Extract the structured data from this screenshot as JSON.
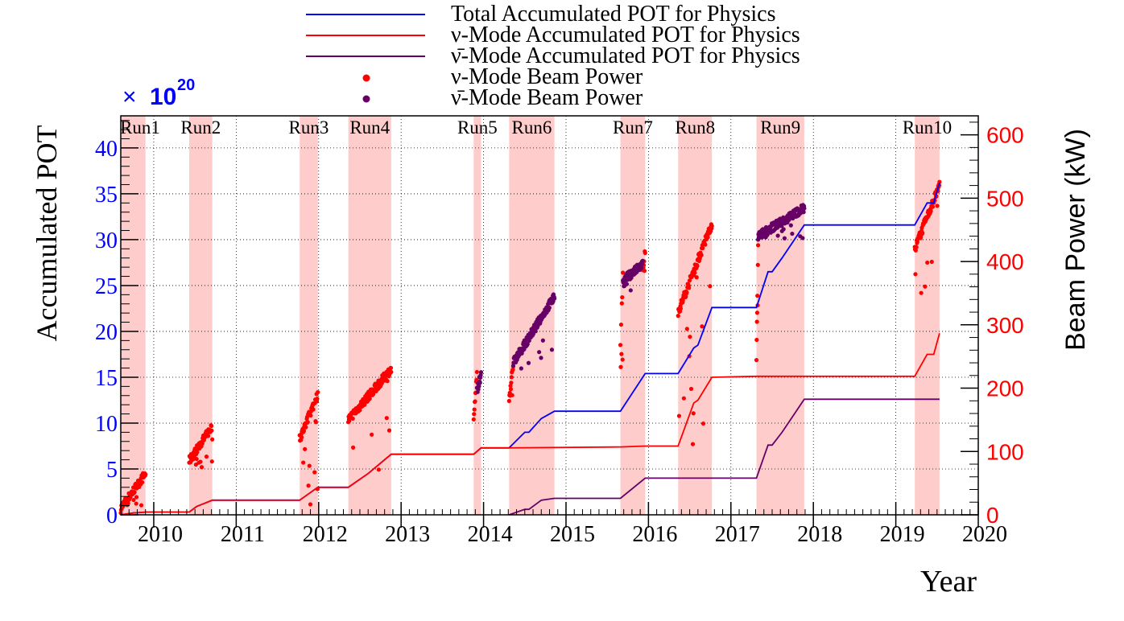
{
  "chart_data": {
    "type": "line",
    "xlabel": "Year",
    "ylabel_left": "Accumulated POT",
    "ylabel_right": "Beam Power (kW)",
    "multiplier_symbol": "×",
    "multiplier_base": "10",
    "multiplier_exponent": "20",
    "xlim": [
      2009.6,
      2020.0
    ],
    "ylim_left": [
      0,
      43.5
    ],
    "ylim_right": [
      0,
      630
    ],
    "grid": true,
    "legend_position": "top-center",
    "x_ticks": [
      {
        "value": 2010,
        "label": "2010"
      },
      {
        "value": 2011,
        "label": "2011"
      },
      {
        "value": 2012,
        "label": "2012"
      },
      {
        "value": 2013,
        "label": "2013"
      },
      {
        "value": 2014,
        "label": "2014"
      },
      {
        "value": 2015,
        "label": "2015"
      },
      {
        "value": 2016,
        "label": "2016"
      },
      {
        "value": 2017,
        "label": "2017"
      },
      {
        "value": 2018,
        "label": "2018"
      },
      {
        "value": 2019,
        "label": "2019"
      },
      {
        "value": 2020,
        "label": "2020"
      }
    ],
    "y_left_ticks": [
      {
        "value": 0,
        "label": "0"
      },
      {
        "value": 5,
        "label": "5"
      },
      {
        "value": 10,
        "label": "10"
      },
      {
        "value": 15,
        "label": "15"
      },
      {
        "value": 20,
        "label": "20"
      },
      {
        "value": 25,
        "label": "25"
      },
      {
        "value": 30,
        "label": "30"
      },
      {
        "value": 35,
        "label": "35"
      },
      {
        "value": 40,
        "label": "40"
      }
    ],
    "y_right_ticks": [
      {
        "value": 0,
        "label": "0"
      },
      {
        "value": 100,
        "label": "100"
      },
      {
        "value": 200,
        "label": "200"
      },
      {
        "value": 300,
        "label": "300"
      },
      {
        "value": 400,
        "label": "400"
      },
      {
        "value": 500,
        "label": "500"
      },
      {
        "value": 600,
        "label": "600"
      }
    ],
    "runs": [
      {
        "label": "Run1",
        "start": 2009.6,
        "end": 2009.9
      },
      {
        "label": "Run2",
        "start": 2010.43,
        "end": 2010.71
      },
      {
        "label": "Run3",
        "start": 2011.77,
        "end": 2011.99
      },
      {
        "label": "Run4",
        "start": 2012.36,
        "end": 2012.88
      },
      {
        "label": "Run5",
        "start": 2013.88,
        "end": 2013.97
      },
      {
        "label": "Run6",
        "start": 2014.31,
        "end": 2014.86
      },
      {
        "label": "Run7",
        "start": 2015.66,
        "end": 2015.96
      },
      {
        "label": "Run8",
        "start": 2016.36,
        "end": 2016.77
      },
      {
        "label": "Run9",
        "start": 2017.31,
        "end": 2017.89
      },
      {
        "label": "Run10",
        "start": 2019.23,
        "end": 2019.53
      }
    ],
    "run_colors": {
      "band": "#ffcccc"
    },
    "legend": [
      {
        "label": "Total Accumulated POT for Physics",
        "kind": "line",
        "color": "#0000ff"
      },
      {
        "label": "ν-Mode Accumulated POT for Physics",
        "kind": "line",
        "color": "#ff0000"
      },
      {
        "label": "ν̄-Mode Accumulated POT for Physics",
        "kind": "line",
        "color": "#660066"
      },
      {
        "label": "ν-Mode Beam Power",
        "kind": "marker",
        "color": "#ff0000"
      },
      {
        "label": "ν̄-Mode Beam Power",
        "kind": "marker",
        "color": "#660066"
      }
    ],
    "series": [
      {
        "name": "Total Accumulated POT for Physics",
        "axis": "left",
        "color": "#0000ff",
        "x": [
          2009.6,
          2009.75,
          2009.9,
          2010.43,
          2010.52,
          2010.71,
          2011.77,
          2011.99,
          2012.36,
          2012.6,
          2012.88,
          2013.88,
          2013.97,
          2014.31,
          2014.5,
          2014.55,
          2014.7,
          2014.86,
          2015.66,
          2015.96,
          2016.36,
          2016.55,
          2016.6,
          2016.77,
          2017.31,
          2017.45,
          2017.5,
          2017.62,
          2017.89,
          2019.23,
          2019.38,
          2019.46,
          2019.53
        ],
        "y": [
          0.0,
          0.2,
          0.3,
          0.3,
          0.9,
          1.6,
          1.6,
          3.0,
          3.0,
          4.5,
          6.6,
          6.6,
          7.3,
          7.3,
          9.0,
          9.0,
          10.5,
          11.3,
          11.3,
          15.4,
          15.4,
          18.2,
          18.5,
          22.6,
          22.6,
          26.5,
          26.5,
          28.0,
          31.6,
          31.6,
          34.0,
          34.0,
          36.2
        ]
      },
      {
        "name": "ν-Mode Accumulated POT for Physics",
        "axis": "left",
        "color": "#ff0000",
        "x": [
          2009.6,
          2009.75,
          2009.9,
          2010.43,
          2010.52,
          2010.71,
          2011.77,
          2011.99,
          2012.36,
          2012.6,
          2012.88,
          2013.88,
          2013.97,
          2014.31,
          2015.66,
          2015.96,
          2016.36,
          2016.55,
          2016.6,
          2016.77,
          2017.31,
          2017.89,
          2019.23,
          2019.38,
          2019.46,
          2019.53
        ],
        "y": [
          0.0,
          0.2,
          0.3,
          0.3,
          0.9,
          1.6,
          1.6,
          3.0,
          3.0,
          4.5,
          6.6,
          6.6,
          7.3,
          7.3,
          7.4,
          7.5,
          7.5,
          12.2,
          12.5,
          15.0,
          15.1,
          15.1,
          15.1,
          17.5,
          17.5,
          19.8
        ]
      },
      {
        "name": "ν̄-Mode Accumulated POT for Physics",
        "axis": "left",
        "color": "#660066",
        "x": [
          2014.31,
          2014.5,
          2014.55,
          2014.7,
          2014.86,
          2015.66,
          2015.96,
          2016.36,
          2017.31,
          2017.45,
          2017.5,
          2017.62,
          2017.89,
          2019.53
        ],
        "y": [
          0.0,
          0.6,
          0.6,
          1.6,
          1.8,
          1.8,
          4.0,
          4.0,
          4.0,
          7.6,
          7.6,
          9.0,
          12.6,
          12.6
        ]
      },
      {
        "name": "ν-Mode Beam Power",
        "axis": "right",
        "color": "#ff0000",
        "kind": "scatter",
        "segments": [
          {
            "start": 2009.6,
            "end": 2009.9,
            "from": 10,
            "to": 65,
            "floor": 10
          },
          {
            "start": 2010.43,
            "end": 2010.71,
            "from": 85,
            "to": 140,
            "floor": 75
          },
          {
            "start": 2011.77,
            "end": 2011.99,
            "from": 120,
            "to": 190,
            "floor": 10
          },
          {
            "start": 2012.36,
            "end": 2012.88,
            "from": 150,
            "to": 230,
            "floor": 40
          },
          {
            "start": 2013.88,
            "end": 2013.92,
            "from": 150,
            "to": 220,
            "floor": 50
          },
          {
            "start": 2014.31,
            "end": 2014.36,
            "from": 180,
            "to": 240,
            "floor": 60
          },
          {
            "start": 2015.66,
            "end": 2015.69,
            "from": 270,
            "to": 380,
            "floor": 200
          },
          {
            "start": 2015.93,
            "end": 2015.96,
            "from": 380,
            "to": 420,
            "floor": 380
          },
          {
            "start": 2016.36,
            "end": 2016.77,
            "from": 320,
            "to": 460,
            "floor": 100
          },
          {
            "start": 2017.31,
            "end": 2017.33,
            "from": 250,
            "to": 420,
            "floor": 160
          },
          {
            "start": 2019.23,
            "end": 2019.53,
            "from": 420,
            "to": 520,
            "floor": 330
          }
        ]
      },
      {
        "name": "ν̄-Mode Beam Power",
        "axis": "right",
        "color": "#660066",
        "kind": "scatter",
        "segments": [
          {
            "start": 2013.92,
            "end": 2013.97,
            "from": 195,
            "to": 225,
            "floor": 195
          },
          {
            "start": 2014.36,
            "end": 2014.86,
            "from": 240,
            "to": 345,
            "floor": 230
          },
          {
            "start": 2015.69,
            "end": 2015.93,
            "from": 370,
            "to": 395,
            "floor": 330
          },
          {
            "start": 2017.33,
            "end": 2017.89,
            "from": 440,
            "to": 485,
            "floor": 430
          }
        ]
      }
    ]
  }
}
